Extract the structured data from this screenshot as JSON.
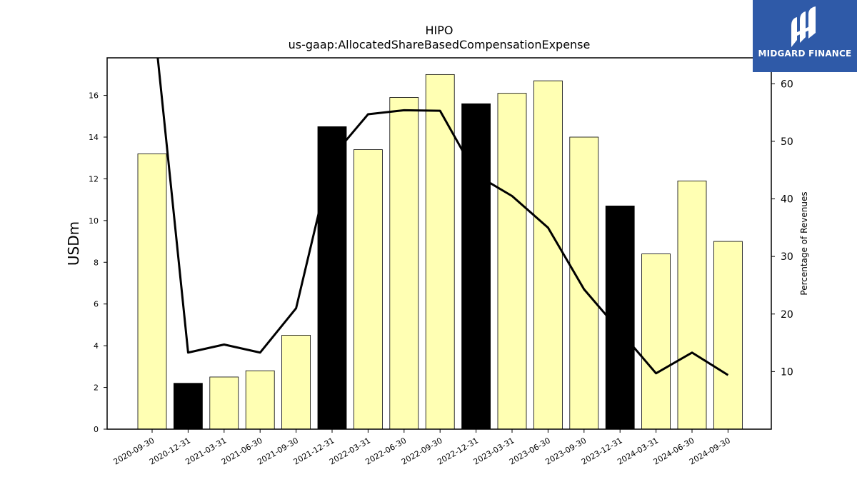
{
  "chart_data": {
    "type": "bar",
    "title": "HIPO",
    "subtitle": "us-gaap:AllocatedShareBasedCompensationExpense",
    "ylabel": "USDm",
    "y2label": "Percentage of Revenues",
    "ylim": [
      0,
      17.8
    ],
    "y2lim": [
      0,
      64.5
    ],
    "yticks": [
      0,
      2,
      4,
      6,
      8,
      10,
      12,
      14,
      16
    ],
    "y2ticks": [
      10,
      20,
      30,
      40,
      50,
      60
    ],
    "grid": false,
    "categories": [
      "2020-09-30",
      "2020-12-31",
      "2021-03-31",
      "2021-06-30",
      "2021-09-30",
      "2021-12-31",
      "2022-03-31",
      "2022-06-30",
      "2022-09-30",
      "2022-12-31",
      "2023-03-31",
      "2023-06-30",
      "2023-09-30",
      "2023-12-31",
      "2024-03-31",
      "2024-06-30",
      "2024-09-30"
    ],
    "series": [
      {
        "kind": "bar",
        "axis": "left",
        "values": [
          13.2,
          2.2,
          2.5,
          2.8,
          4.5,
          14.5,
          13.4,
          15.9,
          17.0,
          15.6,
          16.1,
          16.7,
          14.0,
          10.7,
          8.4,
          11.9,
          9.0
        ],
        "colors": [
          "#ffffb3",
          "#000000",
          "#ffffb3",
          "#ffffb3",
          "#ffffb3",
          "#000000",
          "#ffffb3",
          "#ffffb3",
          "#ffffb3",
          "#000000",
          "#ffffb3",
          "#ffffb3",
          "#ffffb3",
          "#000000",
          "#ffffb3",
          "#ffffb3",
          "#ffffb3"
        ]
      },
      {
        "kind": "line",
        "axis": "right",
        "color": "#000000",
        "values": [
          74,
          13.3,
          14.7,
          13.3,
          21.0,
          47.3,
          54.7,
          55.4,
          55.3,
          44.2,
          40.5,
          35.0,
          24.3,
          17.0,
          9.7,
          13.3,
          9.4
        ]
      }
    ]
  },
  "logo": {
    "text": "MIDGARD FINANCE",
    "color": "#2f5aa8"
  }
}
